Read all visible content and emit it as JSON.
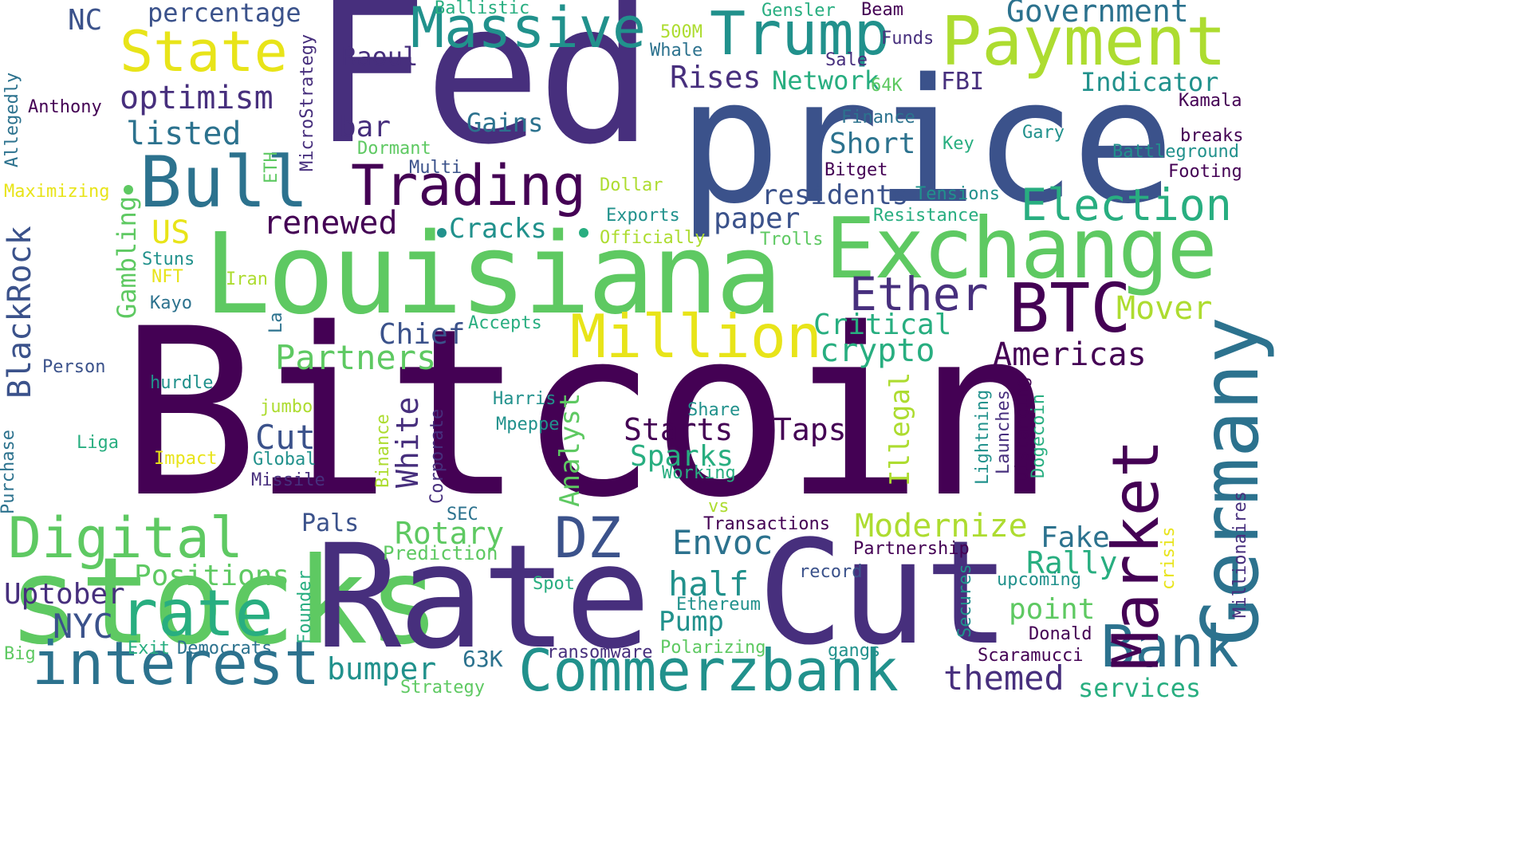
{
  "palette": {
    "dark_purple": "#440154",
    "indigo": "#472f7d",
    "blue": "#3b528b",
    "steel": "#2c728e",
    "teal": "#21918c",
    "green": "#28ae80",
    "light_green": "#5ec962",
    "lime": "#addc30",
    "yellow": "#e8e419"
  },
  "words": [
    {
      "text": "Bitcoin"
    },
    {
      "text": "Fed"
    },
    {
      "text": "price"
    },
    {
      "text": "Louisiana"
    },
    {
      "text": "stocks"
    },
    {
      "text": "Rate"
    },
    {
      "text": "Cut"
    },
    {
      "text": "Exchange"
    },
    {
      "text": "Payment"
    },
    {
      "text": "Trump"
    },
    {
      "text": "Massive"
    },
    {
      "text": "State"
    },
    {
      "text": "Bull"
    },
    {
      "text": "Trading"
    },
    {
      "text": "BTC"
    },
    {
      "text": "Million"
    },
    {
      "text": "Germany"
    },
    {
      "text": "Market"
    },
    {
      "text": "Bank"
    },
    {
      "text": "Commerzbank"
    },
    {
      "text": "interest"
    },
    {
      "text": "rate"
    },
    {
      "text": "Digital"
    },
    {
      "text": "DZ"
    },
    {
      "text": "Election"
    },
    {
      "text": "Ether"
    },
    {
      "text": "Government"
    },
    {
      "text": "Partners"
    },
    {
      "text": "crypto"
    },
    {
      "text": "Americas"
    },
    {
      "text": "Critical"
    },
    {
      "text": "Mover"
    },
    {
      "text": "renewed"
    },
    {
      "text": "optimism"
    },
    {
      "text": "listed"
    },
    {
      "text": "percentage"
    },
    {
      "text": "NC"
    },
    {
      "text": "Raoul"
    },
    {
      "text": "Rises"
    },
    {
      "text": "Network"
    },
    {
      "text": "Indicator"
    },
    {
      "text": "FBI"
    },
    {
      "text": "Gains"
    },
    {
      "text": "bar"
    },
    {
      "text": "Short"
    },
    {
      "text": "residents"
    },
    {
      "text": "paper"
    },
    {
      "text": "Cracks"
    },
    {
      "text": "US"
    },
    {
      "text": "BlackRock"
    },
    {
      "text": "Gambling"
    },
    {
      "text": "Chief"
    },
    {
      "text": "Cut"
    },
    {
      "text": "White"
    },
    {
      "text": "Starts"
    },
    {
      "text": "Taps"
    },
    {
      "text": "Sparks"
    },
    {
      "text": "Illegal"
    },
    {
      "text": "Analyst"
    },
    {
      "text": "Envoc"
    },
    {
      "text": "half"
    },
    {
      "text": "Pump"
    },
    {
      "text": "Modernize"
    },
    {
      "text": "Fake"
    },
    {
      "text": "Rally"
    },
    {
      "text": "point"
    },
    {
      "text": "Positions"
    },
    {
      "text": "Uptober"
    },
    {
      "text": "NYC"
    },
    {
      "text": "bumper"
    },
    {
      "text": "63K"
    },
    {
      "text": "themed"
    },
    {
      "text": "services"
    },
    {
      "text": "Pals"
    },
    {
      "text": "Rotary"
    },
    {
      "text": "Prediction"
    },
    {
      "text": "Ballistic"
    },
    {
      "text": "Gensler"
    },
    {
      "text": "Beam"
    },
    {
      "text": "500M"
    },
    {
      "text": "Whale"
    },
    {
      "text": "Funds"
    },
    {
      "text": "Sale"
    },
    {
      "text": "64K"
    },
    {
      "text": "MicroStrategy"
    },
    {
      "text": "Allegedly"
    },
    {
      "text": "Anthony"
    },
    {
      "text": "Kamala"
    },
    {
      "text": "Finance"
    },
    {
      "text": "Gary"
    },
    {
      "text": "breaks"
    },
    {
      "text": "Key"
    },
    {
      "text": "Battleground"
    },
    {
      "text": "Footing"
    },
    {
      "text": "Dormant"
    },
    {
      "text": "ETH"
    },
    {
      "text": "Multi"
    },
    {
      "text": "Bitget"
    },
    {
      "text": "Maximizing"
    },
    {
      "text": "Dollar"
    },
    {
      "text": "Tensions"
    },
    {
      "text": "Exports"
    },
    {
      "text": "Resistance"
    },
    {
      "text": "Officially"
    },
    {
      "text": "Trolls"
    },
    {
      "text": "Stuns"
    },
    {
      "text": "NFT"
    },
    {
      "text": "Iran"
    },
    {
      "text": "Kayo"
    },
    {
      "text": "La"
    },
    {
      "text": "Accepts"
    },
    {
      "text": "Person"
    },
    {
      "text": "hurdle"
    },
    {
      "text": "Harris"
    },
    {
      "text": "Share"
    },
    {
      "text": "Mpeppe"
    },
    {
      "text": "jumbo"
    },
    {
      "text": "Liga"
    },
    {
      "text": "Purchase"
    },
    {
      "text": "Impact"
    },
    {
      "text": "Global"
    },
    {
      "text": "Missile"
    },
    {
      "text": "Binance"
    },
    {
      "text": "Corporate"
    },
    {
      "text": "Working"
    },
    {
      "text": "Lightning"
    },
    {
      "text": "Launches"
    },
    {
      "text": "Distancing"
    },
    {
      "text": "Dogecoin"
    },
    {
      "text": "SEC"
    },
    {
      "text": "vs"
    },
    {
      "text": "Transactions"
    },
    {
      "text": "Partnership"
    },
    {
      "text": "record"
    },
    {
      "text": "upcoming"
    },
    {
      "text": "crisis"
    },
    {
      "text": "Millionaires"
    },
    {
      "text": "Spot"
    },
    {
      "text": "Ethereum"
    },
    {
      "text": "Founder"
    },
    {
      "text": "Secures"
    },
    {
      "text": "Donald"
    },
    {
      "text": "Scaramucci"
    },
    {
      "text": "Big"
    },
    {
      "text": "Exit"
    },
    {
      "text": "Democrats"
    },
    {
      "text": "ransomware"
    },
    {
      "text": "Polarizing"
    },
    {
      "text": "gangs"
    },
    {
      "text": "Strategy"
    }
  ]
}
